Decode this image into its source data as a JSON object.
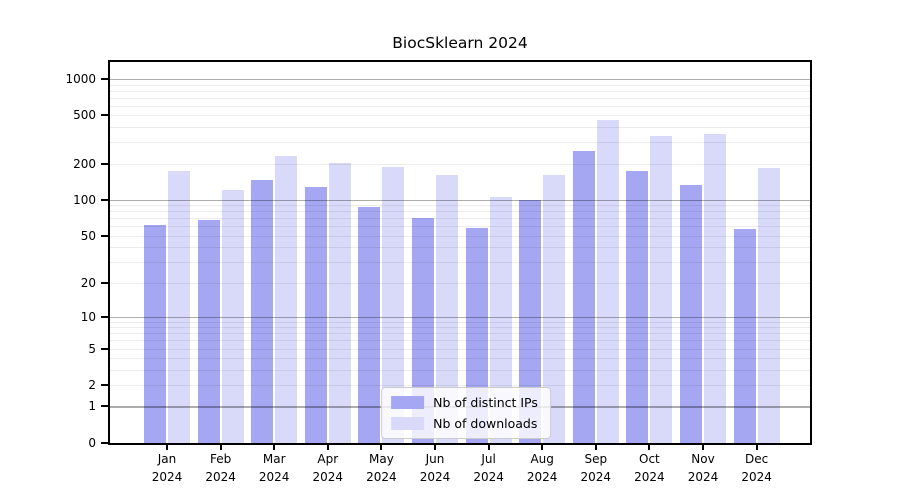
{
  "chart_data": {
    "type": "bar",
    "title": "BiocSklearn 2024",
    "year": "2024",
    "categories": [
      "Jan",
      "Feb",
      "Mar",
      "Apr",
      "May",
      "Jun",
      "Jul",
      "Aug",
      "Sep",
      "Oct",
      "Nov",
      "Dec"
    ],
    "series": [
      {
        "name": "Nb of distinct IPs",
        "color": "#a5a7f3",
        "values": [
          62,
          68,
          147,
          129,
          87,
          70,
          58,
          99,
          252,
          172,
          134,
          57
        ]
      },
      {
        "name": "Nb of downloads",
        "color": "#d9dafa",
        "values": [
          172,
          121,
          230,
          201,
          187,
          160,
          105,
          162,
          462,
          340,
          352,
          185
        ]
      }
    ],
    "yticks": [
      0,
      1,
      2,
      5,
      10,
      20,
      50,
      100,
      200,
      500,
      1000
    ],
    "yscale": "log10(1+value)",
    "ylim": [
      0,
      1380
    ],
    "xlabel": "",
    "ylabel": "",
    "grid": true,
    "legend_position": "lower center",
    "axis_color": "#000000",
    "major_gridline_values": [
      1,
      10,
      100,
      1000
    ]
  }
}
